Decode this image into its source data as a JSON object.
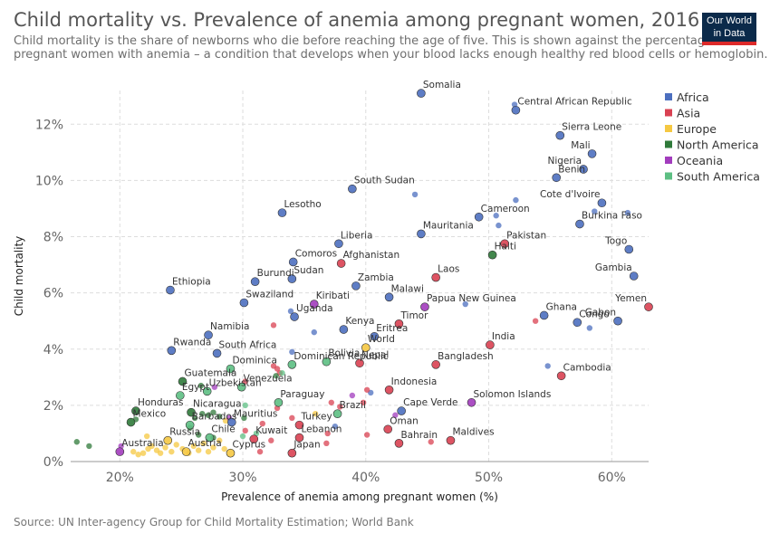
{
  "header": {
    "title": "Child mortality vs. Prevalence of anemia among pregnant women, 2016",
    "subtitle": "Child mortality is the share of newborns who die before reaching the age of five. This is shown against the percentage of pregnant women with anemia – a condition that develops when your blood lacks enough healthy red blood cells or hemoglobin.",
    "logo_line1": "Our World",
    "logo_line2": "in Data"
  },
  "footer": {
    "source": "Source: UN Inter-agency Group for Child Mortality Estimation; World Bank"
  },
  "colors": {
    "Africa": "#4c6fbf",
    "Asia": "#d94152",
    "Europe": "#f5c842",
    "North America": "#2f7a3a",
    "Oceania": "#a23cbd",
    "South America": "#5dbf83"
  },
  "chart_data": {
    "type": "scatter",
    "xlabel": "Prevalence of anemia among pregnant women (%)",
    "ylabel": "Child mortality",
    "xlim": [
      16,
      63
    ],
    "ylim": [
      0,
      13.2
    ],
    "xticks": [
      20,
      30,
      40,
      50,
      60
    ],
    "xtick_labels": [
      "20%",
      "30%",
      "40%",
      "50%",
      "60%"
    ],
    "yticks": [
      0,
      2,
      4,
      6,
      8,
      10,
      12
    ],
    "ytick_labels": [
      "0%",
      "2%",
      "4%",
      "6%",
      "8%",
      "10%",
      "12%"
    ],
    "grid": true,
    "legend_placement": "right",
    "legend": [
      "Africa",
      "Asia",
      "Europe",
      "North America",
      "Oceania",
      "South America"
    ],
    "points": [
      {
        "label": "Somalia",
        "region": "Africa",
        "x": 44.5,
        "y": 13.1
      },
      {
        "label": "Central African Republic",
        "region": "Africa",
        "x": 52.2,
        "y": 12.5
      },
      {
        "label": "",
        "region": "Africa",
        "x": 52.1,
        "y": 12.7
      },
      {
        "label": "Sierra Leone",
        "region": "Africa",
        "x": 55.8,
        "y": 11.6
      },
      {
        "label": "Mali",
        "region": "Africa",
        "x": 58.4,
        "y": 10.95
      },
      {
        "label": "Nigeria",
        "region": "Africa",
        "x": 57.7,
        "y": 10.4
      },
      {
        "label": "Benin",
        "region": "Africa",
        "x": 55.5,
        "y": 10.1
      },
      {
        "label": "Cote d'Ivoire",
        "region": "Africa",
        "x": 59.2,
        "y": 9.2
      },
      {
        "label": "Burkina Faso",
        "region": "Africa",
        "x": 57.4,
        "y": 8.45
      },
      {
        "label": "",
        "region": "Africa",
        "x": 58.6,
        "y": 8.9
      },
      {
        "label": "",
        "region": "Africa",
        "x": 61.3,
        "y": 8.85
      },
      {
        "label": "South Sudan",
        "region": "Africa",
        "x": 38.9,
        "y": 9.7
      },
      {
        "label": "",
        "region": "Africa",
        "x": 44.0,
        "y": 9.5
      },
      {
        "label": "",
        "region": "Africa",
        "x": 52.2,
        "y": 9.3
      },
      {
        "label": "Lesotho",
        "region": "Africa",
        "x": 33.2,
        "y": 8.85
      },
      {
        "label": "Cameroon",
        "region": "Africa",
        "x": 49.2,
        "y": 8.7
      },
      {
        "label": "",
        "region": "Africa",
        "x": 50.6,
        "y": 8.75
      },
      {
        "label": "",
        "region": "Africa",
        "x": 50.8,
        "y": 8.4
      },
      {
        "label": "Mauritania",
        "region": "Africa",
        "x": 44.5,
        "y": 8.1
      },
      {
        "label": "Liberia",
        "region": "Africa",
        "x": 37.8,
        "y": 7.75
      },
      {
        "label": "Togo",
        "region": "Africa",
        "x": 61.4,
        "y": 7.55
      },
      {
        "label": "Comoros",
        "region": "Africa",
        "x": 34.1,
        "y": 7.1
      },
      {
        "label": "Gambia",
        "region": "Africa",
        "x": 61.8,
        "y": 6.6
      },
      {
        "label": "Burundi",
        "region": "Africa",
        "x": 31.0,
        "y": 6.4
      },
      {
        "label": "Sudan",
        "region": "Africa",
        "x": 34.0,
        "y": 6.5
      },
      {
        "label": "Zambia",
        "region": "Africa",
        "x": 39.2,
        "y": 6.25
      },
      {
        "label": "Ethiopia",
        "region": "Africa",
        "x": 24.1,
        "y": 6.1
      },
      {
        "label": "Malawi",
        "region": "Africa",
        "x": 41.9,
        "y": 5.85
      },
      {
        "label": "Swaziland",
        "region": "Africa",
        "x": 30.1,
        "y": 5.65
      },
      {
        "label": "Uganda",
        "region": "Africa",
        "x": 34.2,
        "y": 5.15
      },
      {
        "label": "",
        "region": "Africa",
        "x": 33.9,
        "y": 5.35
      },
      {
        "label": "",
        "region": "Africa",
        "x": 48.1,
        "y": 5.6
      },
      {
        "label": "Ghana",
        "region": "Africa",
        "x": 54.5,
        "y": 5.2
      },
      {
        "label": "Congo",
        "region": "Africa",
        "x": 57.2,
        "y": 4.95
      },
      {
        "label": "Gabon",
        "region": "Africa",
        "x": 60.5,
        "y": 5.0
      },
      {
        "label": "",
        "region": "Africa",
        "x": 58.2,
        "y": 4.75
      },
      {
        "label": "Namibia",
        "region": "Africa",
        "x": 27.2,
        "y": 4.5
      },
      {
        "label": "Kenya",
        "region": "Africa",
        "x": 38.2,
        "y": 4.7
      },
      {
        "label": "",
        "region": "Africa",
        "x": 35.8,
        "y": 4.6
      },
      {
        "label": "Eritrea",
        "region": "Africa",
        "x": 40.7,
        "y": 4.45
      },
      {
        "label": "Rwanda",
        "region": "Africa",
        "x": 24.2,
        "y": 3.95
      },
      {
        "label": "South Africa",
        "region": "Africa",
        "x": 27.9,
        "y": 3.85
      },
      {
        "label": "",
        "region": "Africa",
        "x": 34.0,
        "y": 3.9
      },
      {
        "label": "",
        "region": "Africa",
        "x": 54.8,
        "y": 3.4
      },
      {
        "label": "",
        "region": "Africa",
        "x": 40.4,
        "y": 2.45
      },
      {
        "label": "Cape Verde",
        "region": "Africa",
        "x": 42.9,
        "y": 1.8
      },
      {
        "label": "",
        "region": "Africa",
        "x": 37.5,
        "y": 1.25
      },
      {
        "label": "Mauritius",
        "region": "Africa",
        "x": 29.1,
        "y": 1.4
      },
      {
        "label": "Afghanistan",
        "region": "Asia",
        "x": 38.0,
        "y": 7.05
      },
      {
        "label": "Pakistan",
        "region": "Asia",
        "x": 51.3,
        "y": 7.75
      },
      {
        "label": "Laos",
        "region": "Asia",
        "x": 45.7,
        "y": 6.55
      },
      {
        "label": "Yemen",
        "region": "Asia",
        "x": 63.0,
        "y": 5.5
      },
      {
        "label": "Timor",
        "region": "Asia",
        "x": 42.7,
        "y": 4.9
      },
      {
        "label": "",
        "region": "Asia",
        "x": 53.8,
        "y": 5.0
      },
      {
        "label": "",
        "region": "Asia",
        "x": 32.5,
        "y": 4.85
      },
      {
        "label": "India",
        "region": "Asia",
        "x": 50.1,
        "y": 4.15
      },
      {
        "label": "Nepal",
        "region": "Asia",
        "x": 39.5,
        "y": 3.5
      },
      {
        "label": "Bangladesh",
        "region": "Asia",
        "x": 45.7,
        "y": 3.45
      },
      {
        "label": "Cambodia",
        "region": "Asia",
        "x": 55.9,
        "y": 3.05
      },
      {
        "label": "",
        "region": "Asia",
        "x": 32.5,
        "y": 3.4
      },
      {
        "label": "",
        "region": "Asia",
        "x": 32.8,
        "y": 3.3
      },
      {
        "label": "",
        "region": "Asia",
        "x": 33.0,
        "y": 3.15
      },
      {
        "label": "Indonesia",
        "region": "Asia",
        "x": 41.9,
        "y": 2.55
      },
      {
        "label": "",
        "region": "Asia",
        "x": 30.2,
        "y": 2.85
      },
      {
        "label": "",
        "region": "Asia",
        "x": 40.1,
        "y": 2.55
      },
      {
        "label": "",
        "region": "Asia",
        "x": 39.8,
        "y": 2.1
      },
      {
        "label": "",
        "region": "Asia",
        "x": 37.2,
        "y": 2.1
      },
      {
        "label": "",
        "region": "Asia",
        "x": 37.9,
        "y": 1.95
      },
      {
        "label": "",
        "region": "Asia",
        "x": 32.8,
        "y": 1.9
      },
      {
        "label": "",
        "region": "Asia",
        "x": 34.0,
        "y": 1.55
      },
      {
        "label": "",
        "region": "Asia",
        "x": 31.6,
        "y": 1.35
      },
      {
        "label": "Turkey",
        "region": "Asia",
        "x": 34.6,
        "y": 1.3
      },
      {
        "label": "Oman",
        "region": "Asia",
        "x": 41.8,
        "y": 1.15
      },
      {
        "label": "Kuwait",
        "region": "Asia",
        "x": 30.9,
        "y": 0.8
      },
      {
        "label": "",
        "region": "Asia",
        "x": 30.2,
        "y": 1.1
      },
      {
        "label": "",
        "region": "Asia",
        "x": 32.3,
        "y": 0.75
      },
      {
        "label": "Lebanon",
        "region": "Asia",
        "x": 34.6,
        "y": 0.85
      },
      {
        "label": "",
        "region": "Asia",
        "x": 36.8,
        "y": 0.65
      },
      {
        "label": "",
        "region": "Asia",
        "x": 36.9,
        "y": 1.0
      },
      {
        "label": "",
        "region": "Asia",
        "x": 40.1,
        "y": 0.95
      },
      {
        "label": "Bahrain",
        "region": "Asia",
        "x": 42.7,
        "y": 0.65
      },
      {
        "label": "Maldives",
        "region": "Asia",
        "x": 46.9,
        "y": 0.75
      },
      {
        "label": "",
        "region": "Asia",
        "x": 45.3,
        "y": 0.7
      },
      {
        "label": "Japan",
        "region": "Asia",
        "x": 34.0,
        "y": 0.3
      },
      {
        "label": "",
        "region": "Asia",
        "x": 31.4,
        "y": 0.35
      },
      {
        "label": "World",
        "region": "Europe",
        "x": 40.0,
        "y": 4.05
      },
      {
        "label": "Russia",
        "region": "Europe",
        "x": 23.9,
        "y": 0.75
      },
      {
        "label": "Austria",
        "region": "Europe",
        "x": 25.4,
        "y": 0.35
      },
      {
        "label": "Cyprus",
        "region": "Europe",
        "x": 29.0,
        "y": 0.3
      },
      {
        "label": "",
        "region": "Europe",
        "x": 21.1,
        "y": 0.35
      },
      {
        "label": "",
        "region": "Europe",
        "x": 21.5,
        "y": 0.25
      },
      {
        "label": "",
        "region": "Europe",
        "x": 21.9,
        "y": 0.3
      },
      {
        "label": "",
        "region": "Europe",
        "x": 22.3,
        "y": 0.45
      },
      {
        "label": "",
        "region": "Europe",
        "x": 22.6,
        "y": 0.55
      },
      {
        "label": "",
        "region": "Europe",
        "x": 23.0,
        "y": 0.4
      },
      {
        "label": "",
        "region": "Europe",
        "x": 23.3,
        "y": 0.3
      },
      {
        "label": "",
        "region": "Europe",
        "x": 23.7,
        "y": 0.5
      },
      {
        "label": "",
        "region": "Europe",
        "x": 24.2,
        "y": 0.35
      },
      {
        "label": "",
        "region": "Europe",
        "x": 24.6,
        "y": 0.6
      },
      {
        "label": "",
        "region": "Europe",
        "x": 25.1,
        "y": 0.45
      },
      {
        "label": "",
        "region": "Europe",
        "x": 25.6,
        "y": 0.3
      },
      {
        "label": "",
        "region": "Europe",
        "x": 26.0,
        "y": 0.55
      },
      {
        "label": "",
        "region": "Europe",
        "x": 26.4,
        "y": 0.4
      },
      {
        "label": "",
        "region": "Europe",
        "x": 26.8,
        "y": 0.65
      },
      {
        "label": "",
        "region": "Europe",
        "x": 27.2,
        "y": 0.35
      },
      {
        "label": "",
        "region": "Europe",
        "x": 27.6,
        "y": 0.5
      },
      {
        "label": "",
        "region": "Europe",
        "x": 28.1,
        "y": 0.75
      },
      {
        "label": "",
        "region": "Europe",
        "x": 28.5,
        "y": 0.45
      },
      {
        "label": "",
        "region": "Europe",
        "x": 22.2,
        "y": 0.9
      },
      {
        "label": "",
        "region": "Europe",
        "x": 35.9,
        "y": 1.7
      },
      {
        "label": "",
        "region": "Europe",
        "x": 28.6,
        "y": 1.45
      },
      {
        "label": "Mexico",
        "region": "North America",
        "x": 20.9,
        "y": 1.4
      },
      {
        "label": "Honduras",
        "region": "North America",
        "x": 21.3,
        "y": 1.8
      },
      {
        "label": "",
        "region": "North America",
        "x": 21.3,
        "y": 1.5
      },
      {
        "label": "Guatemala",
        "region": "North America",
        "x": 25.1,
        "y": 2.85
      },
      {
        "label": "Haiti",
        "region": "North America",
        "x": 50.3,
        "y": 7.35
      },
      {
        "label": "",
        "region": "North America",
        "x": 16.5,
        "y": 0.7
      },
      {
        "label": "",
        "region": "North America",
        "x": 17.5,
        "y": 0.55
      },
      {
        "label": "Nicaragua",
        "region": "North America",
        "x": 25.8,
        "y": 1.75
      },
      {
        "label": "",
        "region": "North America",
        "x": 26.1,
        "y": 1.55
      },
      {
        "label": "",
        "region": "North America",
        "x": 26.7,
        "y": 1.7
      },
      {
        "label": "",
        "region": "North America",
        "x": 27.2,
        "y": 1.65
      },
      {
        "label": "",
        "region": "North America",
        "x": 27.6,
        "y": 1.75
      },
      {
        "label": "",
        "region": "North America",
        "x": 28.1,
        "y": 1.6
      },
      {
        "label": "",
        "region": "North America",
        "x": 25.7,
        "y": 1.2
      },
      {
        "label": "",
        "region": "North America",
        "x": 26.4,
        "y": 0.95
      },
      {
        "label": "",
        "region": "North America",
        "x": 27.6,
        "y": 0.85
      },
      {
        "label": "",
        "region": "North America",
        "x": 26.6,
        "y": 2.7
      },
      {
        "label": "",
        "region": "North America",
        "x": 32.7,
        "y": 3.05
      },
      {
        "label": "",
        "region": "North America",
        "x": 30.1,
        "y": 1.55
      },
      {
        "label": "Kiribati",
        "region": "Oceania",
        "x": 35.8,
        "y": 5.6
      },
      {
        "label": "Papua New Guinea",
        "region": "Oceania",
        "x": 44.8,
        "y": 5.5
      },
      {
        "label": "Solomon Islands",
        "region": "Oceania",
        "x": 48.6,
        "y": 2.1
      },
      {
        "label": "Australia",
        "region": "Oceania",
        "x": 20.0,
        "y": 0.35
      },
      {
        "label": "",
        "region": "Oceania",
        "x": 20.1,
        "y": 0.55
      },
      {
        "label": "",
        "region": "Oceania",
        "x": 38.9,
        "y": 2.35
      },
      {
        "label": "",
        "region": "Oceania",
        "x": 42.4,
        "y": 1.65
      },
      {
        "label": "",
        "region": "Oceania",
        "x": 27.7,
        "y": 2.65
      },
      {
        "label": "",
        "region": "Oceania",
        "x": 28.9,
        "y": 1.55
      },
      {
        "label": "Bolivia",
        "region": "South America",
        "x": 36.8,
        "y": 3.55
      },
      {
        "label": "Dominican Republic",
        "region": "South America",
        "x": 34.0,
        "y": 3.45
      },
      {
        "label": "Dominica",
        "region": "South America",
        "x": 29.0,
        "y": 3.3
      },
      {
        "label": "Venezuela",
        "region": "South America",
        "x": 29.9,
        "y": 2.65
      },
      {
        "label": "Paraguay",
        "region": "South America",
        "x": 32.9,
        "y": 2.1
      },
      {
        "label": "Brazil",
        "region": "South America",
        "x": 37.7,
        "y": 1.7
      },
      {
        "label": "Egypt",
        "region": "South America",
        "x": 24.9,
        "y": 2.35
      },
      {
        "label": "Uzbekistan",
        "region": "South America",
        "x": 27.1,
        "y": 2.5
      },
      {
        "label": "Barbados",
        "region": "South America",
        "x": 25.7,
        "y": 1.3
      },
      {
        "label": "Chile",
        "region": "South America",
        "x": 27.3,
        "y": 0.85
      },
      {
        "label": "",
        "region": "South America",
        "x": 30.2,
        "y": 2.0
      },
      {
        "label": "",
        "region": "South America",
        "x": 30.0,
        "y": 0.9
      },
      {
        "label": "",
        "region": "South America",
        "x": 31.1,
        "y": 1.0
      },
      {
        "label": "",
        "region": "South America",
        "x": 33.2,
        "y": 3.15
      }
    ]
  }
}
